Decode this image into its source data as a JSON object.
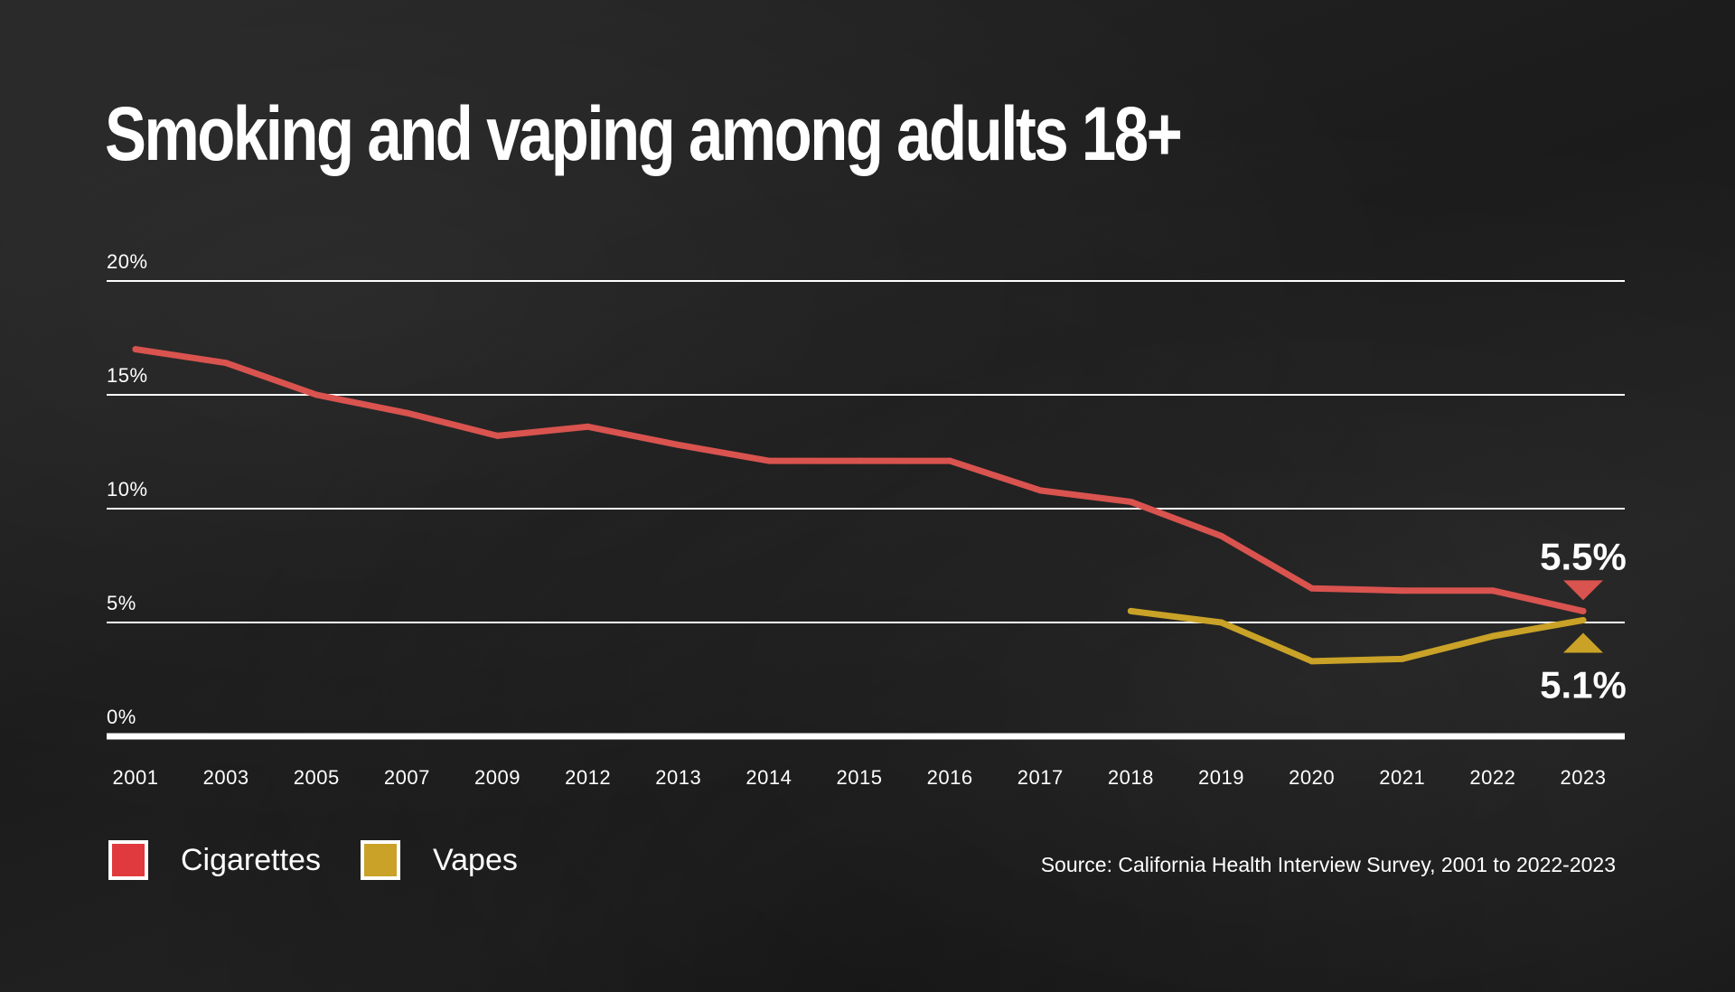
{
  "title": "Smoking and vaping among adults 18+",
  "source": "Source: California Health Interview Survey, 2001 to 2022-2023",
  "colors": {
    "cigarettes": "#d9534f",
    "vapes": "#c9a227",
    "background": "#1c1c1c",
    "text": "#ffffff"
  },
  "legend": [
    {
      "label": "Cigarettes",
      "color": "#e03a3e"
    },
    {
      "label": "Vapes",
      "color": "#c9a227"
    }
  ],
  "chart_data": {
    "type": "line",
    "categories": [
      "2001",
      "2003",
      "2005",
      "2007",
      "2009",
      "2012",
      "2013",
      "2014",
      "2015",
      "2016",
      "2017",
      "2018",
      "2019",
      "2020",
      "2021",
      "2022",
      "2023"
    ],
    "y_ticks": [
      "0%",
      "5%",
      "10%",
      "15%",
      "20%"
    ],
    "ylim": [
      0,
      20
    ],
    "grid": true,
    "series": [
      {
        "name": "Cigarettes",
        "color": "#d9534f",
        "values": [
          17.0,
          16.4,
          15.0,
          14.2,
          13.2,
          13.6,
          12.8,
          12.1,
          12.1,
          12.1,
          10.8,
          10.3,
          8.8,
          6.5,
          6.4,
          6.4,
          5.5
        ]
      },
      {
        "name": "Vapes",
        "color": "#c9a227",
        "values": [
          null,
          null,
          null,
          null,
          null,
          null,
          null,
          null,
          null,
          null,
          null,
          5.5,
          5.0,
          3.3,
          3.4,
          4.4,
          5.1
        ]
      }
    ],
    "annotations": [
      {
        "category": "2023",
        "series": "Cigarettes",
        "text": "5.5%",
        "marker": "triangle-down",
        "placement": "above"
      },
      {
        "category": "2023",
        "series": "Vapes",
        "text": "5.1%",
        "marker": "triangle-up",
        "placement": "below"
      }
    ]
  }
}
